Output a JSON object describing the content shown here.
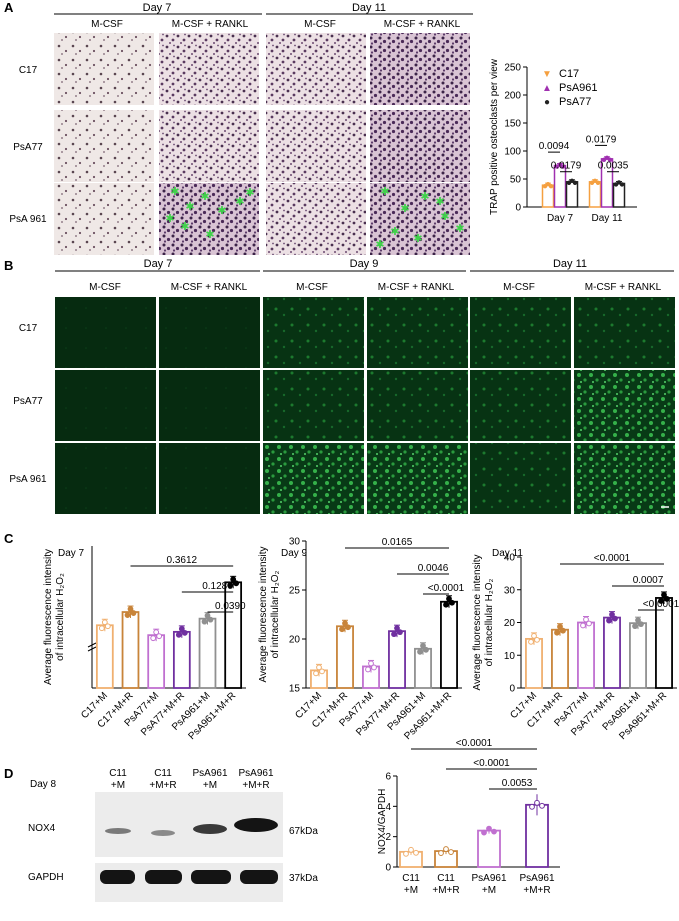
{
  "panelA": {
    "letter": "A",
    "days": [
      "Day 7",
      "Day 11"
    ],
    "cols": [
      "M-CSF",
      "M-CSF + RANKL",
      "M-CSF",
      "M-CSF + RANKL"
    ],
    "rows": [
      "C17",
      "PsA77",
      "PsA 961"
    ],
    "chart_data": {
      "type": "bar",
      "categories": [
        "Day 7",
        "Day 11"
      ],
      "series": [
        {
          "name": "C17",
          "values": [
            39,
            45
          ],
          "color": "#f5a040",
          "marker": "triangle-down"
        },
        {
          "name": "PsA961",
          "values": [
            74,
            86
          ],
          "color": "#a030b0",
          "marker": "triangle-up"
        },
        {
          "name": "PsA77",
          "values": [
            45,
            42
          ],
          "color": "#222222",
          "marker": "circle"
        }
      ],
      "ylabel": "TRAP positive osteoclasts per view",
      "ylim": [
        0,
        250
      ],
      "yticks": [
        "0",
        "50",
        "100",
        "150",
        "200",
        "250"
      ],
      "annotations": [
        "0.0094",
        "0.0179",
        "0.0179",
        "0.0035"
      ]
    }
  },
  "panelB": {
    "letter": "B",
    "days": [
      "Day 7",
      "Day 9",
      "Day 11"
    ],
    "cols": [
      "M-CSF",
      "M-CSF + RANKL",
      "M-CSF",
      "M-CSF + RANKL",
      "M-CSF",
      "M-CSF + RANKL"
    ],
    "rows": [
      "C17",
      "PsA77",
      "PsA 961"
    ]
  },
  "panelC": {
    "letter": "C",
    "ylabel_line1": "Average fluorescence intensity",
    "ylabel_line2": "of intracellular H₂O₂",
    "categories": [
      "C17+M",
      "C17+M+R",
      "PsA77+M",
      "PsA77+M+R",
      "PsA961+M",
      "PsA961+M+R"
    ],
    "colors": [
      "#f0b070",
      "#c8843a",
      "#c070d0",
      "#7030a0",
      "#909090",
      "#000000"
    ],
    "chart_data": [
      {
        "type": "bar",
        "title": "Day 7",
        "categories": [
          "C17+M",
          "C17+M+R",
          "PsA77+M",
          "PsA77+M+R",
          "PsA961+M",
          "PsA961+M+R"
        ],
        "values": [
          5.1,
          5.5,
          4.8,
          4.9,
          5.3,
          6.4
        ],
        "ylim": [
          3.2,
          7.5
        ],
        "yticks": [],
        "annotations": [
          "0.3612",
          "0.1286",
          "0.0390"
        ]
      },
      {
        "type": "bar",
        "title": "Day 9",
        "categories": [
          "C17+M",
          "C17+M+R",
          "PsA77+M",
          "PsA77+M+R",
          "PsA961+M",
          "PsA961+M+R"
        ],
        "values": [
          16.8,
          21.3,
          17.2,
          20.8,
          19.0,
          23.8
        ],
        "ylim": [
          15,
          30
        ],
        "yticks": [
          "15",
          "20",
          "25",
          "30"
        ],
        "annotations": [
          "0.0165",
          "0.0046",
          "<0.0001"
        ]
      },
      {
        "type": "bar",
        "title": "Day 11",
        "categories": [
          "C17+M",
          "C17+M+R",
          "PsA77+M",
          "PsA77+M+R",
          "PsA961+M",
          "PsA961+M+R"
        ],
        "values": [
          15.0,
          17.8,
          20.0,
          21.5,
          19.8,
          27.5
        ],
        "ylim": [
          0,
          40
        ],
        "yticks": [
          "0",
          "10",
          "20",
          "30",
          "40"
        ],
        "annotations": [
          "<0.0001",
          "0.0007",
          "<0.0001"
        ]
      }
    ]
  },
  "panelD": {
    "letter": "D",
    "day": "Day 8",
    "lanes_line1": [
      "C11",
      "C11",
      "PsA961",
      "PsA961"
    ],
    "lanes_line2": [
      "+M",
      "+M+R",
      "+M",
      "+M+R"
    ],
    "bands": [
      "NOX4",
      "GAPDH"
    ],
    "sizes": [
      "67kDa",
      "37kDa"
    ],
    "chart_data": {
      "type": "bar",
      "categories": [
        "C11 +M",
        "C11 +M+R",
        "PsA961 +M",
        "PsA961 +M+R"
      ],
      "values": [
        1.0,
        1.05,
        2.4,
        4.1
      ],
      "colors": [
        "#f0b070",
        "#c8843a",
        "#c070d0",
        "#7030a0"
      ],
      "ylabel": "NOX4/GAPDH",
      "ylim": [
        0,
        6
      ],
      "yticks": [
        "0",
        "2",
        "4",
        "6"
      ],
      "annotations": [
        "<0.0001",
        "<0.0001",
        "0.0053"
      ]
    }
  }
}
